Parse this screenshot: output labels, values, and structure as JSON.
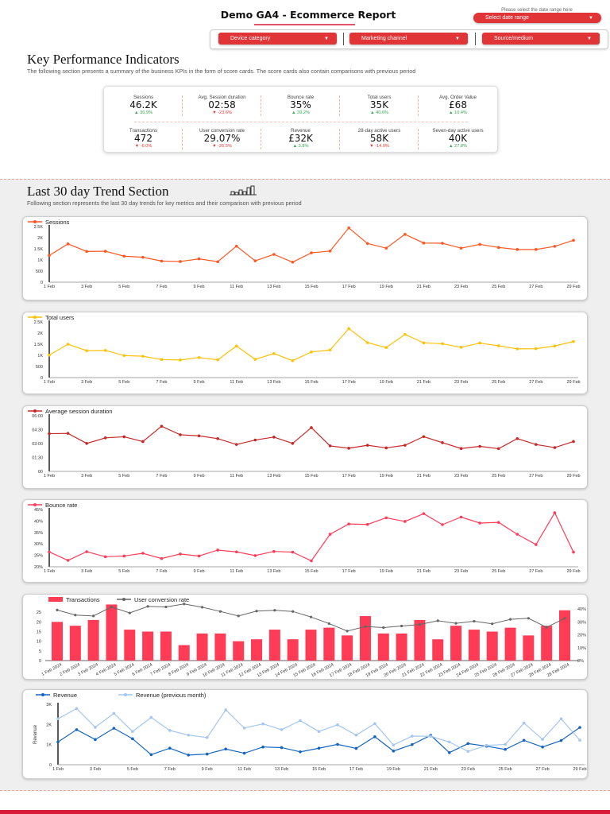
{
  "header": {
    "title": "Demo GA4 - Ecommerce Report",
    "date_label": "Please select the date range here",
    "date_button": "Select date range"
  },
  "filters": [
    {
      "label": "Device category"
    },
    {
      "label": "Marketing channel"
    },
    {
      "label": "Source/medium"
    }
  ],
  "kpi_section": {
    "title": "Key Performance Indicators",
    "description": "The following section presents a summary of the business KPIs in the form of score cards. The score cards also contain comparisons with previous period"
  },
  "kpis": [
    {
      "label": "Sessions",
      "value": "46.2K",
      "delta": "36.9%",
      "trend": "up"
    },
    {
      "label": "Avg. Session duration",
      "value": "02:58",
      "delta": "-23.6%",
      "trend": "down"
    },
    {
      "label": "Bounce rate",
      "value": "35%",
      "delta": "39.2%",
      "trend": "up"
    },
    {
      "label": "Total users",
      "value": "35K",
      "delta": "40.6%",
      "trend": "up"
    },
    {
      "label": "Avg. Order Value",
      "value": "£68",
      "delta": "10.4%",
      "trend": "up"
    },
    {
      "label": "Transactions",
      "value": "472",
      "delta": "-6.0%",
      "trend": "down"
    },
    {
      "label": "User conversion rate",
      "value": "29.07%",
      "delta": "-26.5%",
      "trend": "down"
    },
    {
      "label": "Revenue",
      "value": "£32K",
      "delta": "3.8%",
      "trend": "up"
    },
    {
      "label": "28-day active users",
      "value": "58K",
      "delta": "-14.0%",
      "trend": "down"
    },
    {
      "label": "Seven-day active users",
      "value": "40K",
      "delta": "27.8%",
      "trend": "up"
    }
  ],
  "trend_section": {
    "title": "Last 30 day Trend Section",
    "icon": "bar-chart-icon",
    "description": "Following section represents the last 30 day  trends for key metrics and their comparison with previous period"
  },
  "colors": {
    "accent": "#e13437",
    "sessions": "#ff5722",
    "total_users": "#ffc107",
    "duration": "#c62828",
    "bounce": "#ff3d5a",
    "transactions": "#ff3b55",
    "conversion": "#666666",
    "revenue": "#1565c0",
    "revenue_prev": "#a4c6f0"
  },
  "chart_data": [
    {
      "type": "line",
      "series": [
        {
          "name": "Sessions",
          "values": [
            1200,
            1720,
            1380,
            1390,
            1170,
            1120,
            950,
            930,
            1050,
            920,
            1620,
            960,
            1250,
            900,
            1320,
            1400,
            2440,
            1740,
            1530,
            2150,
            1760,
            1750,
            1530,
            1700,
            1560,
            1470,
            1470,
            1610,
            1880
          ]
        }
      ],
      "x": [
        "1 Feb",
        "2 Feb",
        "3 Feb",
        "4 Feb",
        "5 Feb",
        "6 Feb",
        "7 Feb",
        "8 Feb",
        "9 Feb",
        "10 Feb",
        "11 Feb",
        "12 Feb",
        "13 Feb",
        "14 Feb",
        "15 Feb",
        "16 Feb",
        "17 Feb",
        "18 Feb",
        "19 Feb",
        "20 Feb",
        "21 Feb",
        "22 Feb",
        "23 Feb",
        "24 Feb",
        "25 Feb",
        "26 Feb",
        "27 Feb",
        "28 Feb",
        "29 Feb"
      ],
      "ylim": [
        0,
        2500
      ],
      "yticks": [
        "0",
        "500",
        "1K",
        "1.5K",
        "2K",
        "2.5K"
      ],
      "legend": "top-left"
    },
    {
      "type": "line",
      "series": [
        {
          "name": "Total users",
          "values": [
            1010,
            1500,
            1210,
            1220,
            990,
            960,
            810,
            790,
            900,
            800,
            1420,
            820,
            1080,
            760,
            1150,
            1240,
            2200,
            1570,
            1350,
            1940,
            1560,
            1520,
            1360,
            1550,
            1430,
            1290,
            1300,
            1420,
            1620
          ]
        }
      ],
      "x": [
        "1 Feb",
        "2 Feb",
        "3 Feb",
        "4 Feb",
        "5 Feb",
        "6 Feb",
        "7 Feb",
        "8 Feb",
        "9 Feb",
        "10 Feb",
        "11 Feb",
        "12 Feb",
        "13 Feb",
        "14 Feb",
        "15 Feb",
        "16 Feb",
        "17 Feb",
        "18 Feb",
        "19 Feb",
        "20 Feb",
        "21 Feb",
        "22 Feb",
        "23 Feb",
        "24 Feb",
        "25 Feb",
        "26 Feb",
        "27 Feb",
        "28 Feb",
        "29 Feb"
      ],
      "ylim": [
        0,
        2500
      ],
      "yticks": [
        "0",
        "500",
        "1K",
        "1.5K",
        "2K",
        "2.5K"
      ],
      "legend": "top-left"
    },
    {
      "type": "line",
      "series": [
        {
          "name": "Average session duration",
          "values": [
            "04:04",
            "04:06",
            "03:01",
            "03:37",
            "03:44",
            "03:13",
            "04:52",
            "03:57",
            "03:50",
            "03:32",
            "02:54",
            "03:23",
            "03:42",
            "03:01",
            "04:43",
            "02:45",
            "02:30",
            "02:49",
            "02:32",
            "02:49",
            "03:45",
            "03:06",
            "02:28",
            "02:42",
            "02:27",
            "03:32",
            "02:54",
            "02:34",
            "03:13"
          ]
        }
      ],
      "x": [
        "1 Feb",
        "2 Feb",
        "3 Feb",
        "4 Feb",
        "5 Feb",
        "6 Feb",
        "7 Feb",
        "8 Feb",
        "9 Feb",
        "10 Feb",
        "11 Feb",
        "12 Feb",
        "13 Feb",
        "14 Feb",
        "15 Feb",
        "16 Feb",
        "17 Feb",
        "18 Feb",
        "19 Feb",
        "20 Feb",
        "21 Feb",
        "22 Feb",
        "23 Feb",
        "24 Feb",
        "25 Feb",
        "26 Feb",
        "27 Feb",
        "28 Feb",
        "29 Feb"
      ],
      "ylim": [
        "00:00",
        "06:00"
      ],
      "yticks": [
        "00",
        "01:30",
        "03:00",
        "04:30",
        "06:00"
      ],
      "legend": "top-left"
    },
    {
      "type": "line",
      "series": [
        {
          "name": "Bounce rate",
          "values": [
            26.5,
            22.8,
            26.6,
            24.4,
            24.7,
            25.9,
            23.6,
            25.6,
            24.7,
            27.3,
            26.5,
            24.9,
            26.7,
            26.4,
            22.6,
            34.2,
            38.7,
            38.5,
            41.4,
            39.8,
            43.2,
            38.4,
            41.7,
            39.1,
            39.4,
            34.2,
            29.7,
            43.6,
            26.4
          ]
        }
      ],
      "x": [
        "1 Feb",
        "2 Feb",
        "3 Feb",
        "4 Feb",
        "5 Feb",
        "6 Feb",
        "7 Feb",
        "8 Feb",
        "9 Feb",
        "10 Feb",
        "11 Feb",
        "12 Feb",
        "13 Feb",
        "14 Feb",
        "15 Feb",
        "16 Feb",
        "17 Feb",
        "18 Feb",
        "19 Feb",
        "20 Feb",
        "21 Feb",
        "22 Feb",
        "23 Feb",
        "24 Feb",
        "25 Feb",
        "26 Feb",
        "27 Feb",
        "28 Feb",
        "29 Feb"
      ],
      "ylim": [
        20,
        45
      ],
      "yticks": [
        "20%",
        "25%",
        "30%",
        "35%",
        "40%",
        "45%"
      ],
      "legend": "top-left"
    },
    {
      "type": "bar",
      "categories": [
        "1 Feb 2024",
        "2 Feb 2024",
        "3 Feb 2024",
        "4 Feb 2024",
        "5 Feb 2024",
        "6 Feb 2024",
        "7 Feb 2024",
        "8 Feb 2024",
        "9 Feb 2024",
        "10 Feb 2024",
        "11 Feb 2024",
        "12 Feb 2024",
        "13 Feb 2024",
        "14 Feb 2024",
        "15 Feb 2024",
        "16 Feb 2024",
        "17 Feb 2024",
        "18 Feb 2024",
        "19 Feb 2024",
        "20 Feb 2024",
        "21 Feb 2024",
        "22 Feb 2024",
        "23 Feb 2024",
        "24 Feb 2024",
        "25 Feb 2024",
        "26 Feb 2024",
        "27 Feb 2024",
        "28 Feb 2024",
        "29 Feb 2024"
      ],
      "series": [
        {
          "name": "Transactions",
          "type": "bar",
          "axis": "left",
          "values": [
            20,
            18,
            21,
            29,
            16,
            15,
            15,
            8,
            14,
            14,
            10,
            11,
            16,
            11,
            16,
            17,
            13,
            23,
            14,
            14,
            21,
            11,
            18,
            16,
            15,
            17,
            13,
            18,
            26
          ]
        },
        {
          "name": "User conversion rate",
          "type": "line",
          "axis": "right",
          "values": [
            39.2,
            35.3,
            34.6,
            41.6,
            36.9,
            42.0,
            41.6,
            43.9,
            41.4,
            38.1,
            34.6,
            38.4,
            39.0,
            38.1,
            33.8,
            28.7,
            22.9,
            26.4,
            25.6,
            26.8,
            28.0,
            30.9,
            28.9,
            30.5,
            28.5,
            32.0,
            32.8,
            25.8,
            32.8
          ]
        }
      ],
      "ylim": [
        0,
        30
      ],
      "yticks": [
        "0",
        "5",
        "10",
        "15",
        "20",
        "25"
      ],
      "y2lim": [
        0,
        45
      ],
      "y2ticks": [
        "0%",
        "10%",
        "20%",
        "30%",
        "40%"
      ],
      "legend": "top-left"
    },
    {
      "type": "line",
      "series": [
        {
          "name": "Revenue",
          "values": [
            1130,
            1740,
            1250,
            1810,
            1290,
            500,
            820,
            480,
            530,
            780,
            570,
            880,
            850,
            640,
            820,
            1010,
            810,
            1390,
            680,
            1000,
            1460,
            600,
            1050,
            920,
            760,
            1210,
            880,
            1200,
            1850
          ]
        },
        {
          "name": "Revenue (previous month)",
          "values": [
            2280,
            2790,
            1860,
            2550,
            1650,
            2350,
            1700,
            1470,
            1350,
            2720,
            1820,
            2030,
            1740,
            2190,
            1650,
            1980,
            1470,
            2040,
            980,
            1420,
            1410,
            1130,
            660,
            960,
            1010,
            2070,
            1260,
            2280,
            1220
          ]
        }
      ],
      "x": [
        "1 Feb",
        "2 Feb",
        "3 Feb",
        "4 Feb",
        "5 Feb",
        "6 Feb",
        "7 Feb",
        "8 Feb",
        "9 Feb",
        "10 Feb",
        "11 Feb",
        "12 Feb",
        "13 Feb",
        "14 Feb",
        "15 Feb",
        "16 Feb",
        "17 Feb",
        "18 Feb",
        "19 Feb",
        "20 Feb",
        "21 Feb",
        "22 Feb",
        "23 Feb",
        "24 Feb",
        "25 Feb",
        "26 Feb",
        "27 Feb",
        "28 Feb",
        "29 Feb"
      ],
      "ylabel": "Revenue",
      "ylim": [
        0,
        3000
      ],
      "yticks": [
        "0",
        "1K",
        "2K",
        "3K"
      ],
      "legend": "top-left"
    }
  ]
}
